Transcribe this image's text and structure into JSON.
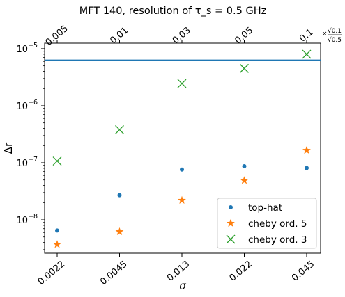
{
  "chart_data": {
    "type": "scatter",
    "title": "MFT 140, resolution of τ_s = 0.5 GHz",
    "xlabel": "σ",
    "ylabel": "Δr",
    "yscale": "log",
    "ylim": [
      2.6e-09,
      1.25e-05
    ],
    "yticks": [
      {
        "value": 1e-08,
        "base": "10",
        "exp": "−8"
      },
      {
        "value": 1e-07,
        "base": "10",
        "exp": "−7"
      },
      {
        "value": 1e-06,
        "base": "10",
        "exp": "−6"
      },
      {
        "value": 1e-05,
        "base": "10",
        "exp": "−5"
      }
    ],
    "categories": [
      "0.0022",
      "0.0045",
      "0.013",
      "0.022",
      "0.045"
    ],
    "top_categories": [
      "0.005",
      "0.01",
      "0.03",
      "0.05",
      "0.1"
    ],
    "top_axis_multiplier": {
      "prefix": "×",
      "numerator": "√0.1",
      "denominator": "√0.5"
    },
    "hline": {
      "value": 6.3e-06,
      "color": "#1f77b4"
    },
    "series": [
      {
        "name": "top-hat",
        "marker": "circle",
        "color": "#1f77b4",
        "values": [
          6.5e-09,
          2.7e-08,
          7.6e-08,
          8.7e-08,
          8.1e-08
        ]
      },
      {
        "name": "cheby ord. 5",
        "marker": "star",
        "color": "#ff7f0e",
        "values": [
          3.7e-09,
          6.2e-09,
          2.2e-08,
          4.9e-08,
          1.65e-07
        ]
      },
      {
        "name": "cheby ord. 3",
        "marker": "x",
        "color": "#2ca02c",
        "values": [
          1.07e-07,
          3.8e-07,
          2.45e-06,
          4.5e-06,
          8e-06
        ]
      }
    ],
    "legend_position": "lower-right",
    "grid": false
  }
}
